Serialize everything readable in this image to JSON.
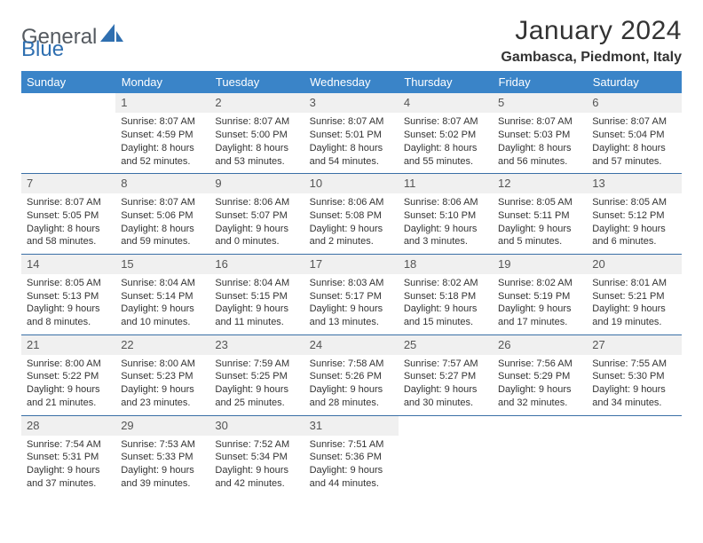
{
  "brand": {
    "part1": "General",
    "part2": "Blue"
  },
  "title": "January 2024",
  "location": "Gambasca, Piedmont, Italy",
  "colors": {
    "header_bg": "#3a84c8",
    "header_text": "#ffffff",
    "daynum_bg": "#f0f0f0",
    "rule": "#3a6fa6",
    "logo_gray": "#555a60",
    "logo_blue": "#2f6fb0"
  },
  "day_headers": [
    "Sunday",
    "Monday",
    "Tuesday",
    "Wednesday",
    "Thursday",
    "Friday",
    "Saturday"
  ],
  "weeks": [
    {
      "nums": [
        "",
        "1",
        "2",
        "3",
        "4",
        "5",
        "6"
      ],
      "cells": [
        {
          "empty": true
        },
        {
          "sr": "Sunrise: 8:07 AM",
          "ss": "Sunset: 4:59 PM",
          "d1": "Daylight: 8 hours",
          "d2": "and 52 minutes."
        },
        {
          "sr": "Sunrise: 8:07 AM",
          "ss": "Sunset: 5:00 PM",
          "d1": "Daylight: 8 hours",
          "d2": "and 53 minutes."
        },
        {
          "sr": "Sunrise: 8:07 AM",
          "ss": "Sunset: 5:01 PM",
          "d1": "Daylight: 8 hours",
          "d2": "and 54 minutes."
        },
        {
          "sr": "Sunrise: 8:07 AM",
          "ss": "Sunset: 5:02 PM",
          "d1": "Daylight: 8 hours",
          "d2": "and 55 minutes."
        },
        {
          "sr": "Sunrise: 8:07 AM",
          "ss": "Sunset: 5:03 PM",
          "d1": "Daylight: 8 hours",
          "d2": "and 56 minutes."
        },
        {
          "sr": "Sunrise: 8:07 AM",
          "ss": "Sunset: 5:04 PM",
          "d1": "Daylight: 8 hours",
          "d2": "and 57 minutes."
        }
      ]
    },
    {
      "nums": [
        "7",
        "8",
        "9",
        "10",
        "11",
        "12",
        "13"
      ],
      "cells": [
        {
          "sr": "Sunrise: 8:07 AM",
          "ss": "Sunset: 5:05 PM",
          "d1": "Daylight: 8 hours",
          "d2": "and 58 minutes."
        },
        {
          "sr": "Sunrise: 8:07 AM",
          "ss": "Sunset: 5:06 PM",
          "d1": "Daylight: 8 hours",
          "d2": "and 59 minutes."
        },
        {
          "sr": "Sunrise: 8:06 AM",
          "ss": "Sunset: 5:07 PM",
          "d1": "Daylight: 9 hours",
          "d2": "and 0 minutes."
        },
        {
          "sr": "Sunrise: 8:06 AM",
          "ss": "Sunset: 5:08 PM",
          "d1": "Daylight: 9 hours",
          "d2": "and 2 minutes."
        },
        {
          "sr": "Sunrise: 8:06 AM",
          "ss": "Sunset: 5:10 PM",
          "d1": "Daylight: 9 hours",
          "d2": "and 3 minutes."
        },
        {
          "sr": "Sunrise: 8:05 AM",
          "ss": "Sunset: 5:11 PM",
          "d1": "Daylight: 9 hours",
          "d2": "and 5 minutes."
        },
        {
          "sr": "Sunrise: 8:05 AM",
          "ss": "Sunset: 5:12 PM",
          "d1": "Daylight: 9 hours",
          "d2": "and 6 minutes."
        }
      ]
    },
    {
      "nums": [
        "14",
        "15",
        "16",
        "17",
        "18",
        "19",
        "20"
      ],
      "cells": [
        {
          "sr": "Sunrise: 8:05 AM",
          "ss": "Sunset: 5:13 PM",
          "d1": "Daylight: 9 hours",
          "d2": "and 8 minutes."
        },
        {
          "sr": "Sunrise: 8:04 AM",
          "ss": "Sunset: 5:14 PM",
          "d1": "Daylight: 9 hours",
          "d2": "and 10 minutes."
        },
        {
          "sr": "Sunrise: 8:04 AM",
          "ss": "Sunset: 5:15 PM",
          "d1": "Daylight: 9 hours",
          "d2": "and 11 minutes."
        },
        {
          "sr": "Sunrise: 8:03 AM",
          "ss": "Sunset: 5:17 PM",
          "d1": "Daylight: 9 hours",
          "d2": "and 13 minutes."
        },
        {
          "sr": "Sunrise: 8:02 AM",
          "ss": "Sunset: 5:18 PM",
          "d1": "Daylight: 9 hours",
          "d2": "and 15 minutes."
        },
        {
          "sr": "Sunrise: 8:02 AM",
          "ss": "Sunset: 5:19 PM",
          "d1": "Daylight: 9 hours",
          "d2": "and 17 minutes."
        },
        {
          "sr": "Sunrise: 8:01 AM",
          "ss": "Sunset: 5:21 PM",
          "d1": "Daylight: 9 hours",
          "d2": "and 19 minutes."
        }
      ]
    },
    {
      "nums": [
        "21",
        "22",
        "23",
        "24",
        "25",
        "26",
        "27"
      ],
      "cells": [
        {
          "sr": "Sunrise: 8:00 AM",
          "ss": "Sunset: 5:22 PM",
          "d1": "Daylight: 9 hours",
          "d2": "and 21 minutes."
        },
        {
          "sr": "Sunrise: 8:00 AM",
          "ss": "Sunset: 5:23 PM",
          "d1": "Daylight: 9 hours",
          "d2": "and 23 minutes."
        },
        {
          "sr": "Sunrise: 7:59 AM",
          "ss": "Sunset: 5:25 PM",
          "d1": "Daylight: 9 hours",
          "d2": "and 25 minutes."
        },
        {
          "sr": "Sunrise: 7:58 AM",
          "ss": "Sunset: 5:26 PM",
          "d1": "Daylight: 9 hours",
          "d2": "and 28 minutes."
        },
        {
          "sr": "Sunrise: 7:57 AM",
          "ss": "Sunset: 5:27 PM",
          "d1": "Daylight: 9 hours",
          "d2": "and 30 minutes."
        },
        {
          "sr": "Sunrise: 7:56 AM",
          "ss": "Sunset: 5:29 PM",
          "d1": "Daylight: 9 hours",
          "d2": "and 32 minutes."
        },
        {
          "sr": "Sunrise: 7:55 AM",
          "ss": "Sunset: 5:30 PM",
          "d1": "Daylight: 9 hours",
          "d2": "and 34 minutes."
        }
      ]
    },
    {
      "nums": [
        "28",
        "29",
        "30",
        "31",
        "",
        "",
        ""
      ],
      "cells": [
        {
          "sr": "Sunrise: 7:54 AM",
          "ss": "Sunset: 5:31 PM",
          "d1": "Daylight: 9 hours",
          "d2": "and 37 minutes."
        },
        {
          "sr": "Sunrise: 7:53 AM",
          "ss": "Sunset: 5:33 PM",
          "d1": "Daylight: 9 hours",
          "d2": "and 39 minutes."
        },
        {
          "sr": "Sunrise: 7:52 AM",
          "ss": "Sunset: 5:34 PM",
          "d1": "Daylight: 9 hours",
          "d2": "and 42 minutes."
        },
        {
          "sr": "Sunrise: 7:51 AM",
          "ss": "Sunset: 5:36 PM",
          "d1": "Daylight: 9 hours",
          "d2": "and 44 minutes."
        },
        {
          "empty": true
        },
        {
          "empty": true
        },
        {
          "empty": true
        }
      ]
    }
  ]
}
